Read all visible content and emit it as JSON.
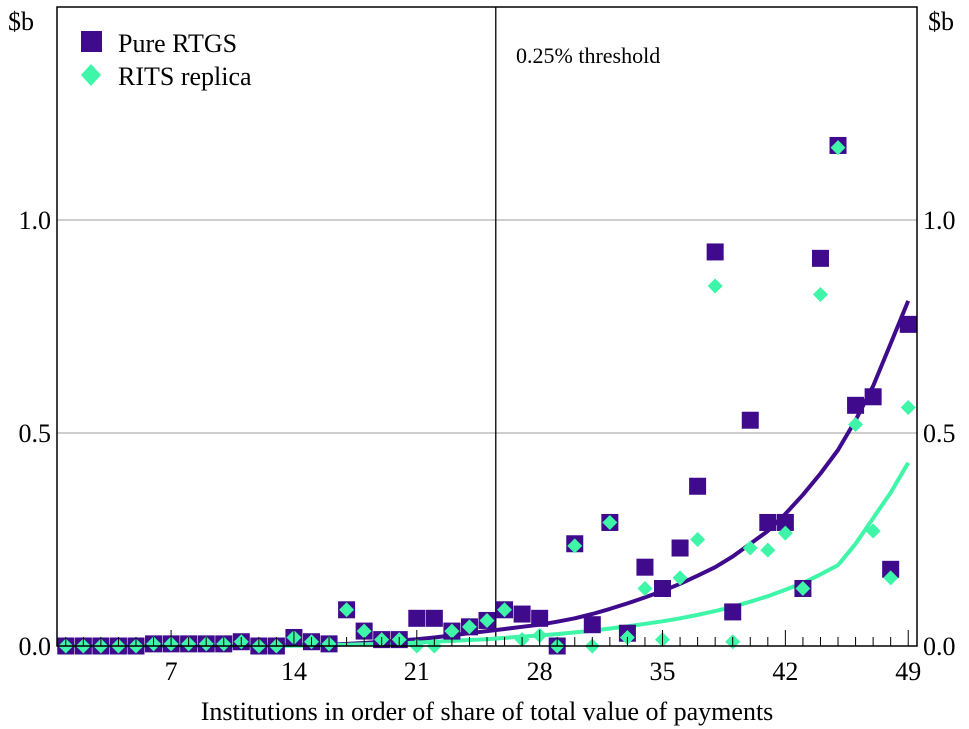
{
  "chart_data": {
    "type": "scatter",
    "title": "",
    "xlabel": "Institutions in order of share of total value of payments",
    "ylabel_left": "$b",
    "ylabel_right": "$b",
    "xlim": [
      0.5,
      49.5
    ],
    "ylim": [
      0,
      1.5
    ],
    "x_ticks": [
      7,
      14,
      21,
      28,
      35,
      42,
      49
    ],
    "y_ticks": [
      0.0,
      0.5,
      1.0
    ],
    "y_tick_labels": [
      "0.0",
      "0.5",
      "1.0"
    ],
    "grid": "horizontal",
    "legend_position": "top-left",
    "threshold": {
      "x": 25.5,
      "label": "0.25% threshold"
    },
    "x": [
      1,
      2,
      3,
      4,
      5,
      6,
      7,
      8,
      9,
      10,
      11,
      12,
      13,
      14,
      15,
      16,
      17,
      18,
      19,
      20,
      21,
      22,
      23,
      24,
      25,
      26,
      27,
      28,
      29,
      30,
      31,
      32,
      33,
      34,
      35,
      36,
      37,
      38,
      39,
      40,
      41,
      42,
      43,
      44,
      45,
      46,
      47,
      48,
      49
    ],
    "series": [
      {
        "name": "Pure RTGS",
        "marker": "square",
        "color": "#3F0A8C",
        "values": [
          0.0,
          0.0,
          0.0,
          0.0,
          0.0,
          0.005,
          0.005,
          0.005,
          0.005,
          0.005,
          0.01,
          0.0,
          0.0,
          0.02,
          0.01,
          0.005,
          0.085,
          0.035,
          0.015,
          0.015,
          0.065,
          0.065,
          0.035,
          0.045,
          0.06,
          0.085,
          0.075,
          0.065,
          0.0,
          0.24,
          0.05,
          0.29,
          0.03,
          0.185,
          0.135,
          0.23,
          0.375,
          0.925,
          0.08,
          0.53,
          0.29,
          0.29,
          0.135,
          0.91,
          1.175,
          0.565,
          0.585,
          0.18,
          0.755
        ],
        "trend": [
          0.0,
          0.0,
          0.0,
          0.0,
          0.0,
          0.0,
          0.0,
          0.0,
          0.0,
          0.0,
          0.0,
          0.0,
          0.001,
          0.002,
          0.002,
          0.003,
          0.005,
          0.007,
          0.01,
          0.013,
          0.016,
          0.02,
          0.025,
          0.03,
          0.035,
          0.04,
          0.045,
          0.05,
          0.057,
          0.065,
          0.075,
          0.087,
          0.1,
          0.114,
          0.129,
          0.146,
          0.165,
          0.185,
          0.21,
          0.24,
          0.27,
          0.31,
          0.355,
          0.405,
          0.46,
          0.53,
          0.61,
          0.71,
          0.81
        ]
      },
      {
        "name": "RITS replica",
        "marker": "diamond",
        "color": "#3EF5A8",
        "values": [
          0.0,
          0.0,
          0.0,
          0.0,
          0.0,
          0.005,
          0.005,
          0.005,
          0.005,
          0.005,
          0.01,
          0.0,
          0.0,
          0.02,
          0.01,
          0.005,
          0.085,
          0.035,
          0.015,
          0.015,
          0.0,
          0.0,
          0.035,
          0.045,
          0.06,
          0.085,
          0.015,
          0.025,
          0.0,
          0.235,
          0.0,
          0.29,
          0.02,
          0.135,
          0.015,
          0.16,
          0.25,
          0.845,
          0.01,
          0.23,
          0.225,
          0.265,
          0.135,
          0.825,
          1.17,
          0.52,
          0.27,
          0.16,
          0.56
        ],
        "trend": [
          0.0,
          0.0,
          0.0,
          0.0,
          0.0,
          0.0,
          0.0,
          0.0,
          0.0,
          0.0,
          0.0,
          0.0,
          0.0,
          0.001,
          0.001,
          0.002,
          0.003,
          0.004,
          0.005,
          0.006,
          0.008,
          0.01,
          0.012,
          0.014,
          0.016,
          0.019,
          0.022,
          0.025,
          0.028,
          0.032,
          0.036,
          0.041,
          0.046,
          0.052,
          0.058,
          0.065,
          0.073,
          0.082,
          0.092,
          0.104,
          0.117,
          0.132,
          0.148,
          0.168,
          0.19,
          0.24,
          0.3,
          0.36,
          0.43
        ]
      }
    ]
  }
}
